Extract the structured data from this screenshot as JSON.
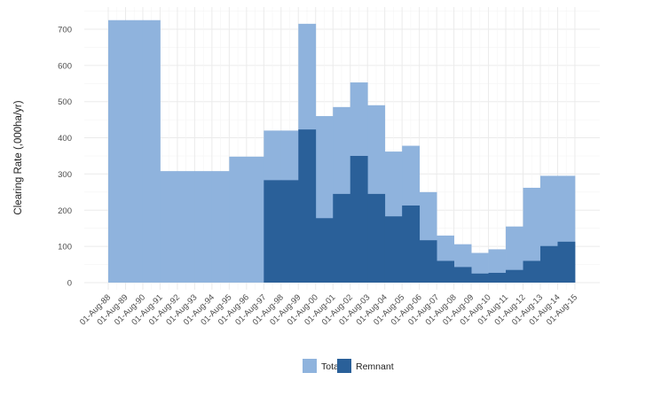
{
  "chart_data": {
    "type": "area",
    "step": true,
    "xlabel": "",
    "ylabel": "Clearing Rate (,000ha/yr)",
    "ylim": [
      0,
      720
    ],
    "yticks": [
      0,
      100,
      200,
      300,
      400,
      500,
      600,
      700
    ],
    "grid": true,
    "legend_position": "bottom",
    "x_tick_labels": [
      "01-Aug-88",
      "01-Aug-89",
      "01-Aug-90",
      "01-Aug-91",
      "01-Aug-92",
      "01-Aug-93",
      "01-Aug-94",
      "01-Aug-95",
      "01-Aug-96",
      "01-Aug-97",
      "01-Aug-98",
      "01-Aug-99",
      "01-Aug-00",
      "01-Aug-01",
      "01-Aug-02",
      "01-Aug-03",
      "01-Aug-04",
      "01-Aug-05",
      "01-Aug-06",
      "01-Aug-07",
      "01-Aug-08",
      "01-Aug-09",
      "01-Aug-10",
      "01-Aug-11",
      "01-Aug-12",
      "01-Aug-13",
      "01-Aug-14",
      "01-Aug-15"
    ],
    "series": [
      {
        "name": "Total",
        "color": "#8fb3dd",
        "values": [
          725,
          725,
          725,
          308,
          308,
          308,
          308,
          348,
          348,
          420,
          420,
          715,
          460,
          485,
          553,
          490,
          362,
          378,
          250,
          130,
          106,
          82,
          92,
          155,
          262,
          295,
          295
        ]
      },
      {
        "name": "Remnant",
        "color": "#2a6099",
        "values": [
          0,
          0,
          0,
          0,
          0,
          0,
          0,
          0,
          0,
          283,
          283,
          423,
          178,
          245,
          350,
          245,
          183,
          213,
          117,
          60,
          43,
          25,
          27,
          35,
          60,
          101,
          113
        ]
      }
    ]
  }
}
